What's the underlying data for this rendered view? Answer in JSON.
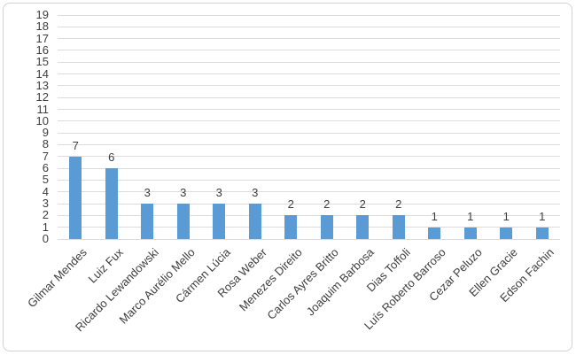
{
  "chart_data": {
    "type": "bar",
    "title": "",
    "xlabel": "",
    "ylabel": "",
    "categories": [
      "Gilmar Mendes",
      "Luiz Fux",
      "Ricardo Lewandowski",
      "Marco Aurélio Mello",
      "Cármen Lúcia",
      "Rosa Weber",
      "Menezes Direito",
      "Carlos Ayres Britto",
      "Joaquim Barbosa",
      "Dias Toffoli",
      "Luís Roberto Barroso",
      "Cezar Peluzo",
      "Ellen Gracie",
      "Edson Fachin"
    ],
    "values": [
      7,
      6,
      3,
      3,
      3,
      3,
      2,
      2,
      2,
      2,
      1,
      1,
      1,
      1
    ],
    "data_labels": [
      "7",
      "6",
      "3",
      "3",
      "3",
      "3",
      "2",
      "2",
      "2",
      "2",
      "1",
      "1",
      "1",
      "1"
    ],
    "ylim": [
      0,
      19
    ],
    "yticks": [
      0,
      1,
      2,
      3,
      4,
      5,
      6,
      7,
      8,
      9,
      10,
      11,
      12,
      13,
      14,
      15,
      16,
      17,
      18,
      19
    ],
    "grid": "horizontal",
    "legend": "none",
    "x_label_rotation_deg": 45
  },
  "style_colors": {
    "bar_fill": "#5B9BD5",
    "grid_color": "#dcdcdc",
    "text_color": "#3d3d3d",
    "frame_border": "#d2d2d2",
    "background": "#ffffff"
  }
}
